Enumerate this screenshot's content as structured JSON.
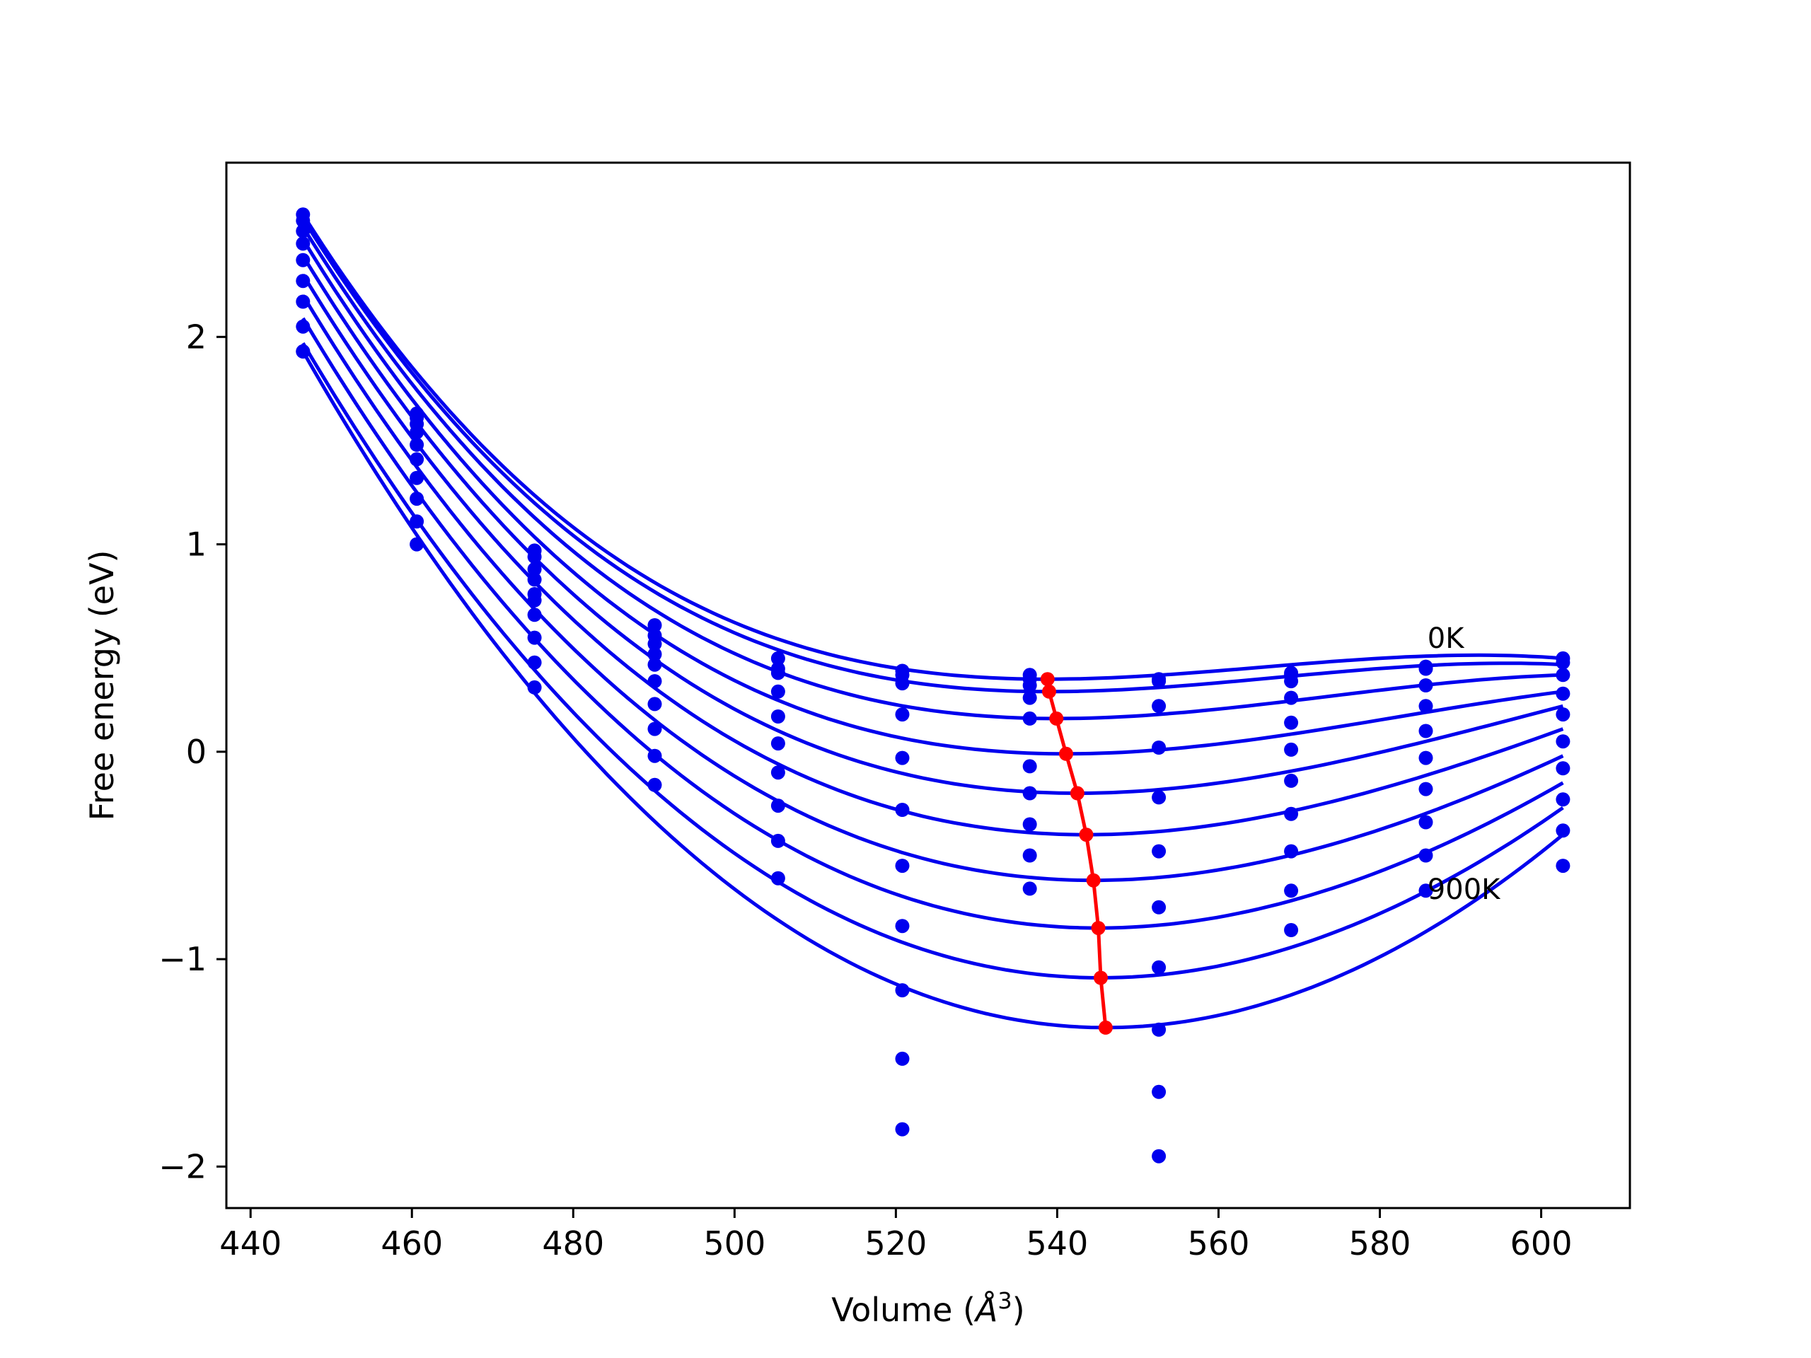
{
  "chart_data": {
    "type": "line",
    "title": "",
    "xlabel": "Volume (",
    "xlabel_symbol": "Å",
    "xlabel_exponent": "3",
    "xlabel_close": ")",
    "ylabel": "Free energy (eV)",
    "xlim": [
      437,
      611
    ],
    "ylim": [
      -2.2,
      2.84
    ],
    "xticks": [
      440,
      460,
      480,
      500,
      520,
      540,
      560,
      580,
      600
    ],
    "xtick_labels": [
      "440",
      "460",
      "480",
      "500",
      "520",
      "540",
      "560",
      "580",
      "600"
    ],
    "yticks": [
      -2,
      -1,
      0,
      1,
      2
    ],
    "ytick_labels": [
      "−2",
      "−1",
      "0",
      "1",
      "2"
    ],
    "grid": false,
    "colors": {
      "fit_curves": "#0000ee",
      "points": "#0000ee",
      "minimum_path": "#ff0000",
      "axes": "#000000"
    },
    "volumes": [
      446.5,
      460.6,
      475.2,
      490.1,
      505.4,
      520.8,
      536.6,
      552.6,
      569.0,
      585.7,
      602.7
    ],
    "fit_curves": [
      {
        "min_volume": 538.8,
        "min_energy": 0.35,
        "left_energy": 2.59,
        "right_energy": 0.45
      },
      {
        "min_volume": 539.0,
        "min_energy": 0.29,
        "left_energy": 2.57,
        "right_energy": 0.42
      },
      {
        "min_volume": 539.9,
        "min_energy": 0.16,
        "left_energy": 2.53,
        "right_energy": 0.37
      },
      {
        "min_volume": 541.1,
        "min_energy": -0.01,
        "left_energy": 2.47,
        "right_energy": 0.29
      },
      {
        "min_volume": 542.5,
        "min_energy": -0.2,
        "left_energy": 2.39,
        "right_energy": 0.22
      },
      {
        "min_volume": 543.6,
        "min_energy": -0.4,
        "left_energy": 2.3,
        "right_energy": 0.11
      },
      {
        "min_volume": 544.5,
        "min_energy": -0.62,
        "left_energy": 2.2,
        "right_energy": -0.02
      },
      {
        "min_volume": 545.1,
        "min_energy": -0.85,
        "left_energy": 2.09,
        "right_energy": -0.15
      },
      {
        "min_volume": 545.4,
        "min_energy": -1.09,
        "left_energy": 1.97,
        "right_energy": -0.27
      },
      {
        "min_volume": 546.0,
        "min_energy": -1.33,
        "left_energy": 1.93,
        "right_energy": -0.4
      }
    ],
    "data_points": [
      [
        2.59,
        1.63,
        0.97,
        0.61,
        0.45,
        0.39,
        0.37,
        0.35,
        0.38,
        0.41,
        0.45
      ],
      [
        2.56,
        1.61,
        0.94,
        0.56,
        0.4,
        0.37,
        0.35,
        0.34,
        0.37,
        0.4,
        0.43
      ],
      [
        2.51,
        1.58,
        0.88,
        0.52,
        0.38,
        0.33,
        0.32,
        0.22,
        0.34,
        0.32,
        0.37
      ],
      [
        2.45,
        1.54,
        0.83,
        0.47,
        0.29,
        0.18,
        0.26,
        0.02,
        0.26,
        0.22,
        0.28
      ],
      [
        2.37,
        1.48,
        0.76,
        0.42,
        0.17,
        -0.03,
        0.16,
        -0.22,
        0.14,
        0.1,
        0.18
      ],
      [
        2.27,
        1.41,
        0.73,
        0.34,
        0.04,
        -0.28,
        -0.07,
        -0.48,
        0.01,
        -0.03,
        0.05
      ],
      [
        2.17,
        1.32,
        0.66,
        0.23,
        -0.1,
        -0.55,
        -0.2,
        -0.75,
        -0.14,
        -0.18,
        -0.08
      ],
      [
        2.05,
        1.22,
        0.55,
        0.11,
        -0.26,
        -0.84,
        -0.35,
        -1.04,
        -0.3,
        -0.34,
        -0.23
      ],
      [
        1.93,
        1.11,
        0.43,
        -0.02,
        -0.43,
        -1.15,
        -0.5,
        -1.34,
        -0.48,
        -0.5,
        -0.38
      ],
      [
        1.93,
        1.0,
        0.31,
        -0.16,
        -0.61,
        -1.48,
        -0.66,
        -1.64,
        -0.67,
        -0.67,
        -0.55
      ],
      [
        null,
        null,
        null,
        null,
        null,
        -1.82,
        null,
        -1.95,
        -0.86,
        null,
        null
      ]
    ],
    "minimum_path": {
      "x": [
        538.8,
        539.0,
        539.9,
        541.1,
        542.5,
        543.6,
        544.5,
        545.1,
        545.4,
        546.0
      ],
      "y": [
        0.35,
        0.29,
        0.16,
        -0.01,
        -0.2,
        -0.4,
        -0.62,
        -0.85,
        -1.09,
        -1.33
      ]
    },
    "annotations": [
      {
        "text": "0K",
        "x": 585.9,
        "y": 0.5
      },
      {
        "text": "900K",
        "x": 585.9,
        "y": -0.71
      }
    ]
  }
}
